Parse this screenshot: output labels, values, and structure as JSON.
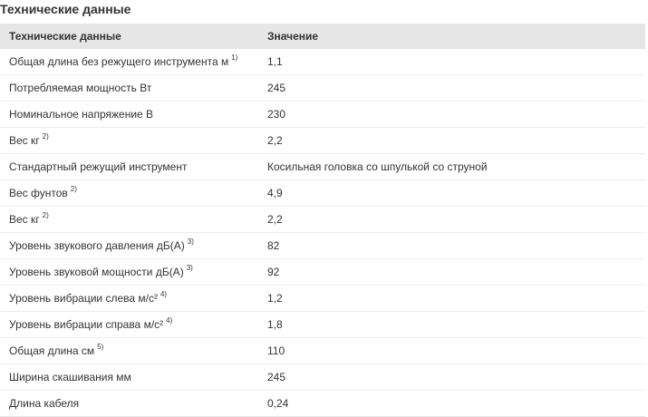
{
  "section": {
    "title": "Технические данные"
  },
  "table": {
    "headers": [
      "Технические данные",
      "Значение"
    ],
    "rows": [
      {
        "label": "Общая длина без режущего инструмента м",
        "note": "1)",
        "value": "1,1"
      },
      {
        "label": "Потребляемая мощность Вт",
        "note": "",
        "value": "245"
      },
      {
        "label": "Номинальное напряжение В",
        "note": "",
        "value": "230"
      },
      {
        "label": "Вес кг",
        "note": "2)",
        "value": "2,2"
      },
      {
        "label": "Стандартный режущий инструмент",
        "note": "",
        "value": "Косильная головка со шпулькой со струной"
      },
      {
        "label": "Вес фунтов",
        "note": "2)",
        "value": "4,9"
      },
      {
        "label": "Вес кг",
        "note": "2)",
        "value": "2,2"
      },
      {
        "label": "Уровень звукового давления дБ(А)",
        "note": "3)",
        "value": "82"
      },
      {
        "label": "Уровень звуковой мощности дБ(А)",
        "note": "3)",
        "value": "92"
      },
      {
        "label": "Уровень вибрации слева м/с²",
        "note": "4)",
        "value": "1,2"
      },
      {
        "label": "Уровень вибрации справа м/с²",
        "note": "4)",
        "value": "1,8"
      },
      {
        "label": "Общая длина см",
        "note": "5)",
        "value": "110"
      },
      {
        "label": "Ширина скашивания мм",
        "note": "",
        "value": "245"
      },
      {
        "label": "Длина кабеля",
        "note": "",
        "value": "0,24"
      }
    ]
  }
}
